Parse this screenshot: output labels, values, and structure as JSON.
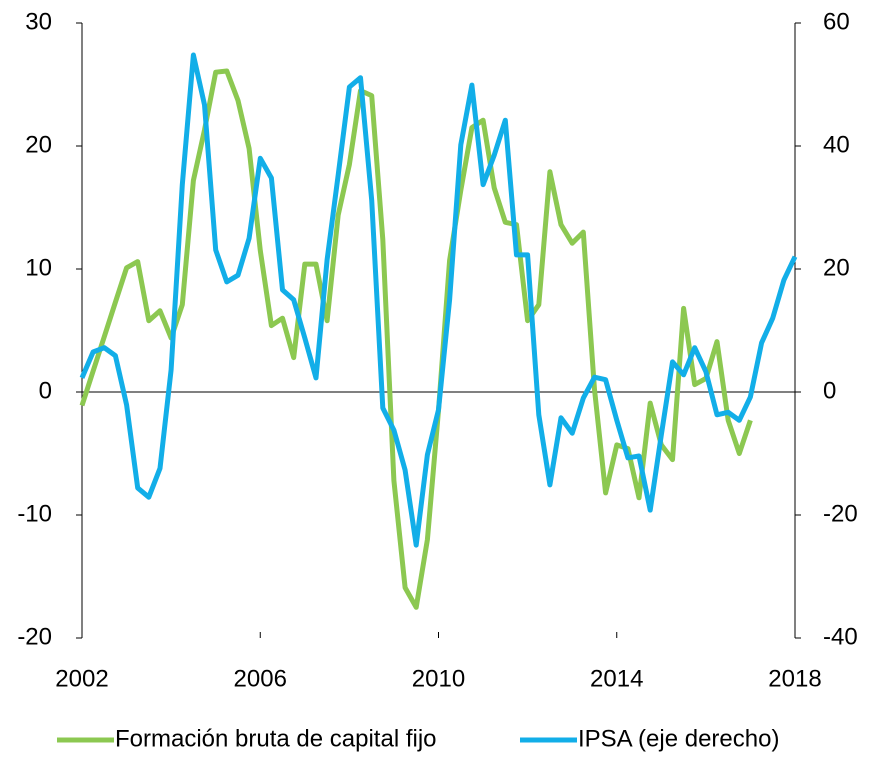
{
  "chart_data": {
    "type": "line",
    "x": [
      2002,
      2002.25,
      2002.5,
      2002.75,
      2003,
      2003.25,
      2003.5,
      2003.75,
      2004,
      2004.25,
      2004.5,
      2004.75,
      2005,
      2005.25,
      2005.5,
      2005.75,
      2006,
      2006.25,
      2006.5,
      2006.75,
      2007,
      2007.25,
      2007.5,
      2007.75,
      2008,
      2008.25,
      2008.5,
      2008.75,
      2009,
      2009.25,
      2009.5,
      2009.75,
      2010,
      2010.25,
      2010.5,
      2010.75,
      2011,
      2011.25,
      2011.5,
      2011.75,
      2012,
      2012.25,
      2012.5,
      2012.75,
      2013,
      2013.25,
      2013.5,
      2013.75,
      2014,
      2014.25,
      2014.5,
      2014.75,
      2015,
      2015.25,
      2015.5,
      2015.75,
      2016,
      2016.25,
      2016.5,
      2016.75,
      2017,
      2017.25,
      2017.5,
      2017.75,
      2018
    ],
    "series": [
      {
        "name": "Formación bruta de capital fijo",
        "color": "#8cc851",
        "values": [
          -1.1,
          1.7,
          4.5,
          7.3,
          10.1,
          10.6,
          5.8,
          6.6,
          4.4,
          7.1,
          17.2,
          21.3,
          26,
          26.1,
          23.7,
          19.8,
          11.5,
          5.4,
          6,
          2.8,
          10.4,
          10.4,
          5.8,
          14.4,
          18.5,
          24.5,
          24.1,
          12.4,
          -7.2,
          -15.9,
          -17.5,
          -12,
          -1.5,
          10.7,
          16.4,
          21.5,
          22.1,
          16.6,
          13.8,
          13.6,
          5.8,
          7.1,
          17.9,
          13.6,
          12.1,
          13,
          0.2,
          -8.2,
          -4.3,
          -4.6,
          -8.6,
          -0.9,
          -4.3,
          -5.5,
          6.8,
          0.6,
          1.1,
          4.1,
          -2.3,
          -5,
          -2.3,
          null,
          null,
          null,
          null
        ]
      },
      {
        "name": "IPSA (eje derecho)",
        "color": "#12aee8",
        "axis": "y2",
        "values": [
          2.3,
          6.5,
          7.2,
          5.9,
          -2.1,
          -15.6,
          -17.1,
          -12.4,
          3.6,
          33.7,
          54.8,
          46.7,
          23.1,
          17.9,
          19,
          25,
          38,
          34.8,
          16.6,
          15,
          8.8,
          2.3,
          21.5,
          35.3,
          49.6,
          51.1,
          31.2,
          -2.6,
          -6.2,
          -12.7,
          -24.9,
          -10.2,
          -2.9,
          15,
          40.2,
          49.9,
          33.7,
          38.5,
          44.2,
          22.3,
          22.3,
          -3.7,
          -15.1,
          -4.2,
          -6.7,
          -1,
          2.4,
          2,
          -4.6,
          -10.7,
          -10.4,
          -19.2,
          -7,
          4.9,
          2.8,
          7.2,
          3.3,
          -3.7,
          -3.3,
          -4.6,
          -0.8,
          8,
          12,
          18.2,
          22
        ]
      }
    ],
    "xlim": [
      2002,
      2018
    ],
    "xticks": [
      2002,
      2006,
      2010,
      2014,
      2018
    ],
    "ylim": [
      -20,
      30
    ],
    "yticks": [
      -20,
      -10,
      0,
      10,
      20,
      30
    ],
    "y2lim": [
      -40,
      60
    ],
    "y2ticks": [
      -40,
      -20,
      0,
      20,
      40,
      60
    ],
    "legend": "bottom"
  }
}
